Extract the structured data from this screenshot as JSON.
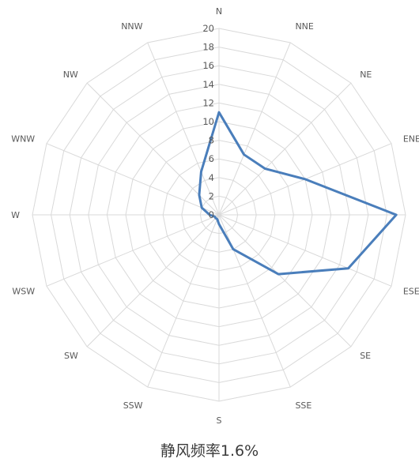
{
  "chart_data": {
    "type": "radar",
    "title": "",
    "categories": [
      "N",
      "NNE",
      "NE",
      "ENE",
      "E",
      "ESE",
      "SE",
      "SSE",
      "S",
      "SSW",
      "SW",
      "WSW",
      "W",
      "WNW",
      "NW",
      "NNW"
    ],
    "series": [
      {
        "values": [
          11,
          7,
          7,
          10,
          19,
          15,
          9,
          4,
          1,
          0.5,
          0.5,
          0.5,
          1,
          2,
          3,
          5
        ]
      }
    ],
    "rlim": [
      0,
      20
    ],
    "r_ticks": [
      "0",
      "2",
      "4",
      "6",
      "8",
      "10",
      "12",
      "14",
      "16",
      "18",
      "20"
    ],
    "grid": true,
    "legend": "none",
    "colors": {
      "series": "#4a7ebb",
      "grid": "#d9d9d9",
      "labels": "#595959"
    }
  },
  "caption": "静风频率1.6%"
}
